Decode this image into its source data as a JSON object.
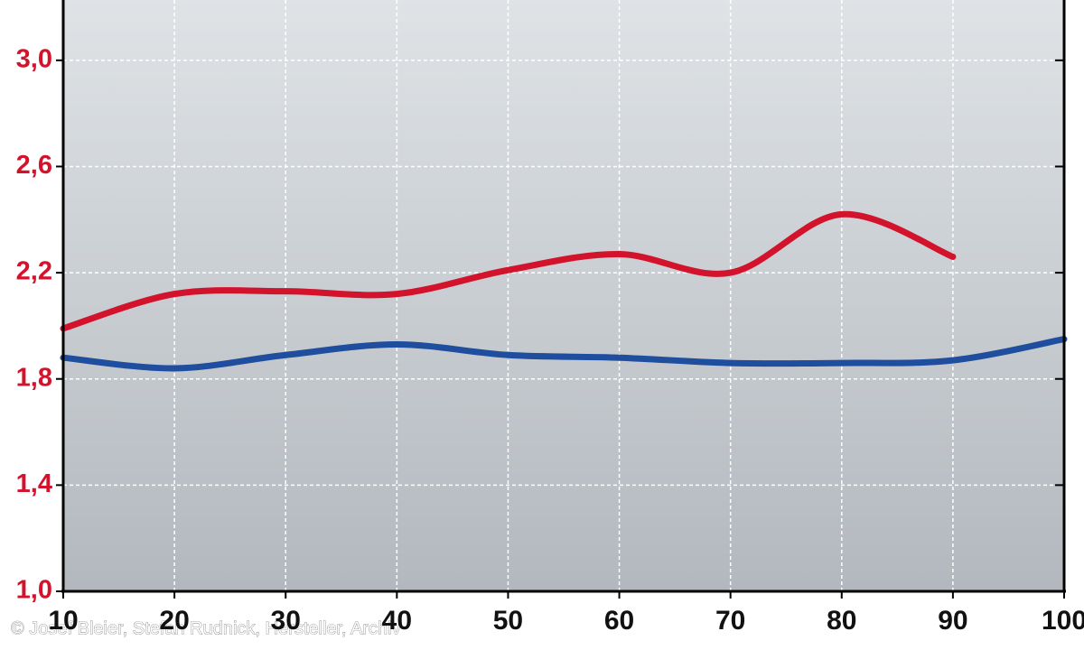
{
  "chart_data": {
    "type": "line",
    "x": [
      10,
      20,
      30,
      40,
      50,
      60,
      70,
      80,
      90,
      100
    ],
    "series": [
      {
        "color": "#d3122c",
        "values": [
          1.99,
          2.12,
          2.13,
          2.12,
          2.21,
          2.27,
          2.2,
          2.42,
          2.26,
          null
        ]
      },
      {
        "color": "#1f4e9e",
        "values": [
          1.88,
          1.84,
          1.89,
          1.93,
          1.89,
          1.88,
          1.86,
          1.86,
          1.87,
          1.95
        ]
      }
    ],
    "xlim": [
      10,
      100
    ],
    "xticks": [
      10,
      20,
      30,
      40,
      50,
      60,
      70,
      80,
      90,
      100
    ],
    "ylim": [
      1.0,
      3.2
    ],
    "yticks": [
      {
        "value": 1.0,
        "label": "1,0"
      },
      {
        "value": 1.4,
        "label": "1,4"
      },
      {
        "value": 1.8,
        "label": "1,8"
      },
      {
        "value": 2.2,
        "label": "2,2"
      },
      {
        "value": 2.6,
        "label": "2,6"
      },
      {
        "value": 3.0,
        "label": "3,0"
      }
    ],
    "grid": true,
    "credit": "© Josef Bleier, Stefan Rudnick, Hersteller, Archiv"
  }
}
